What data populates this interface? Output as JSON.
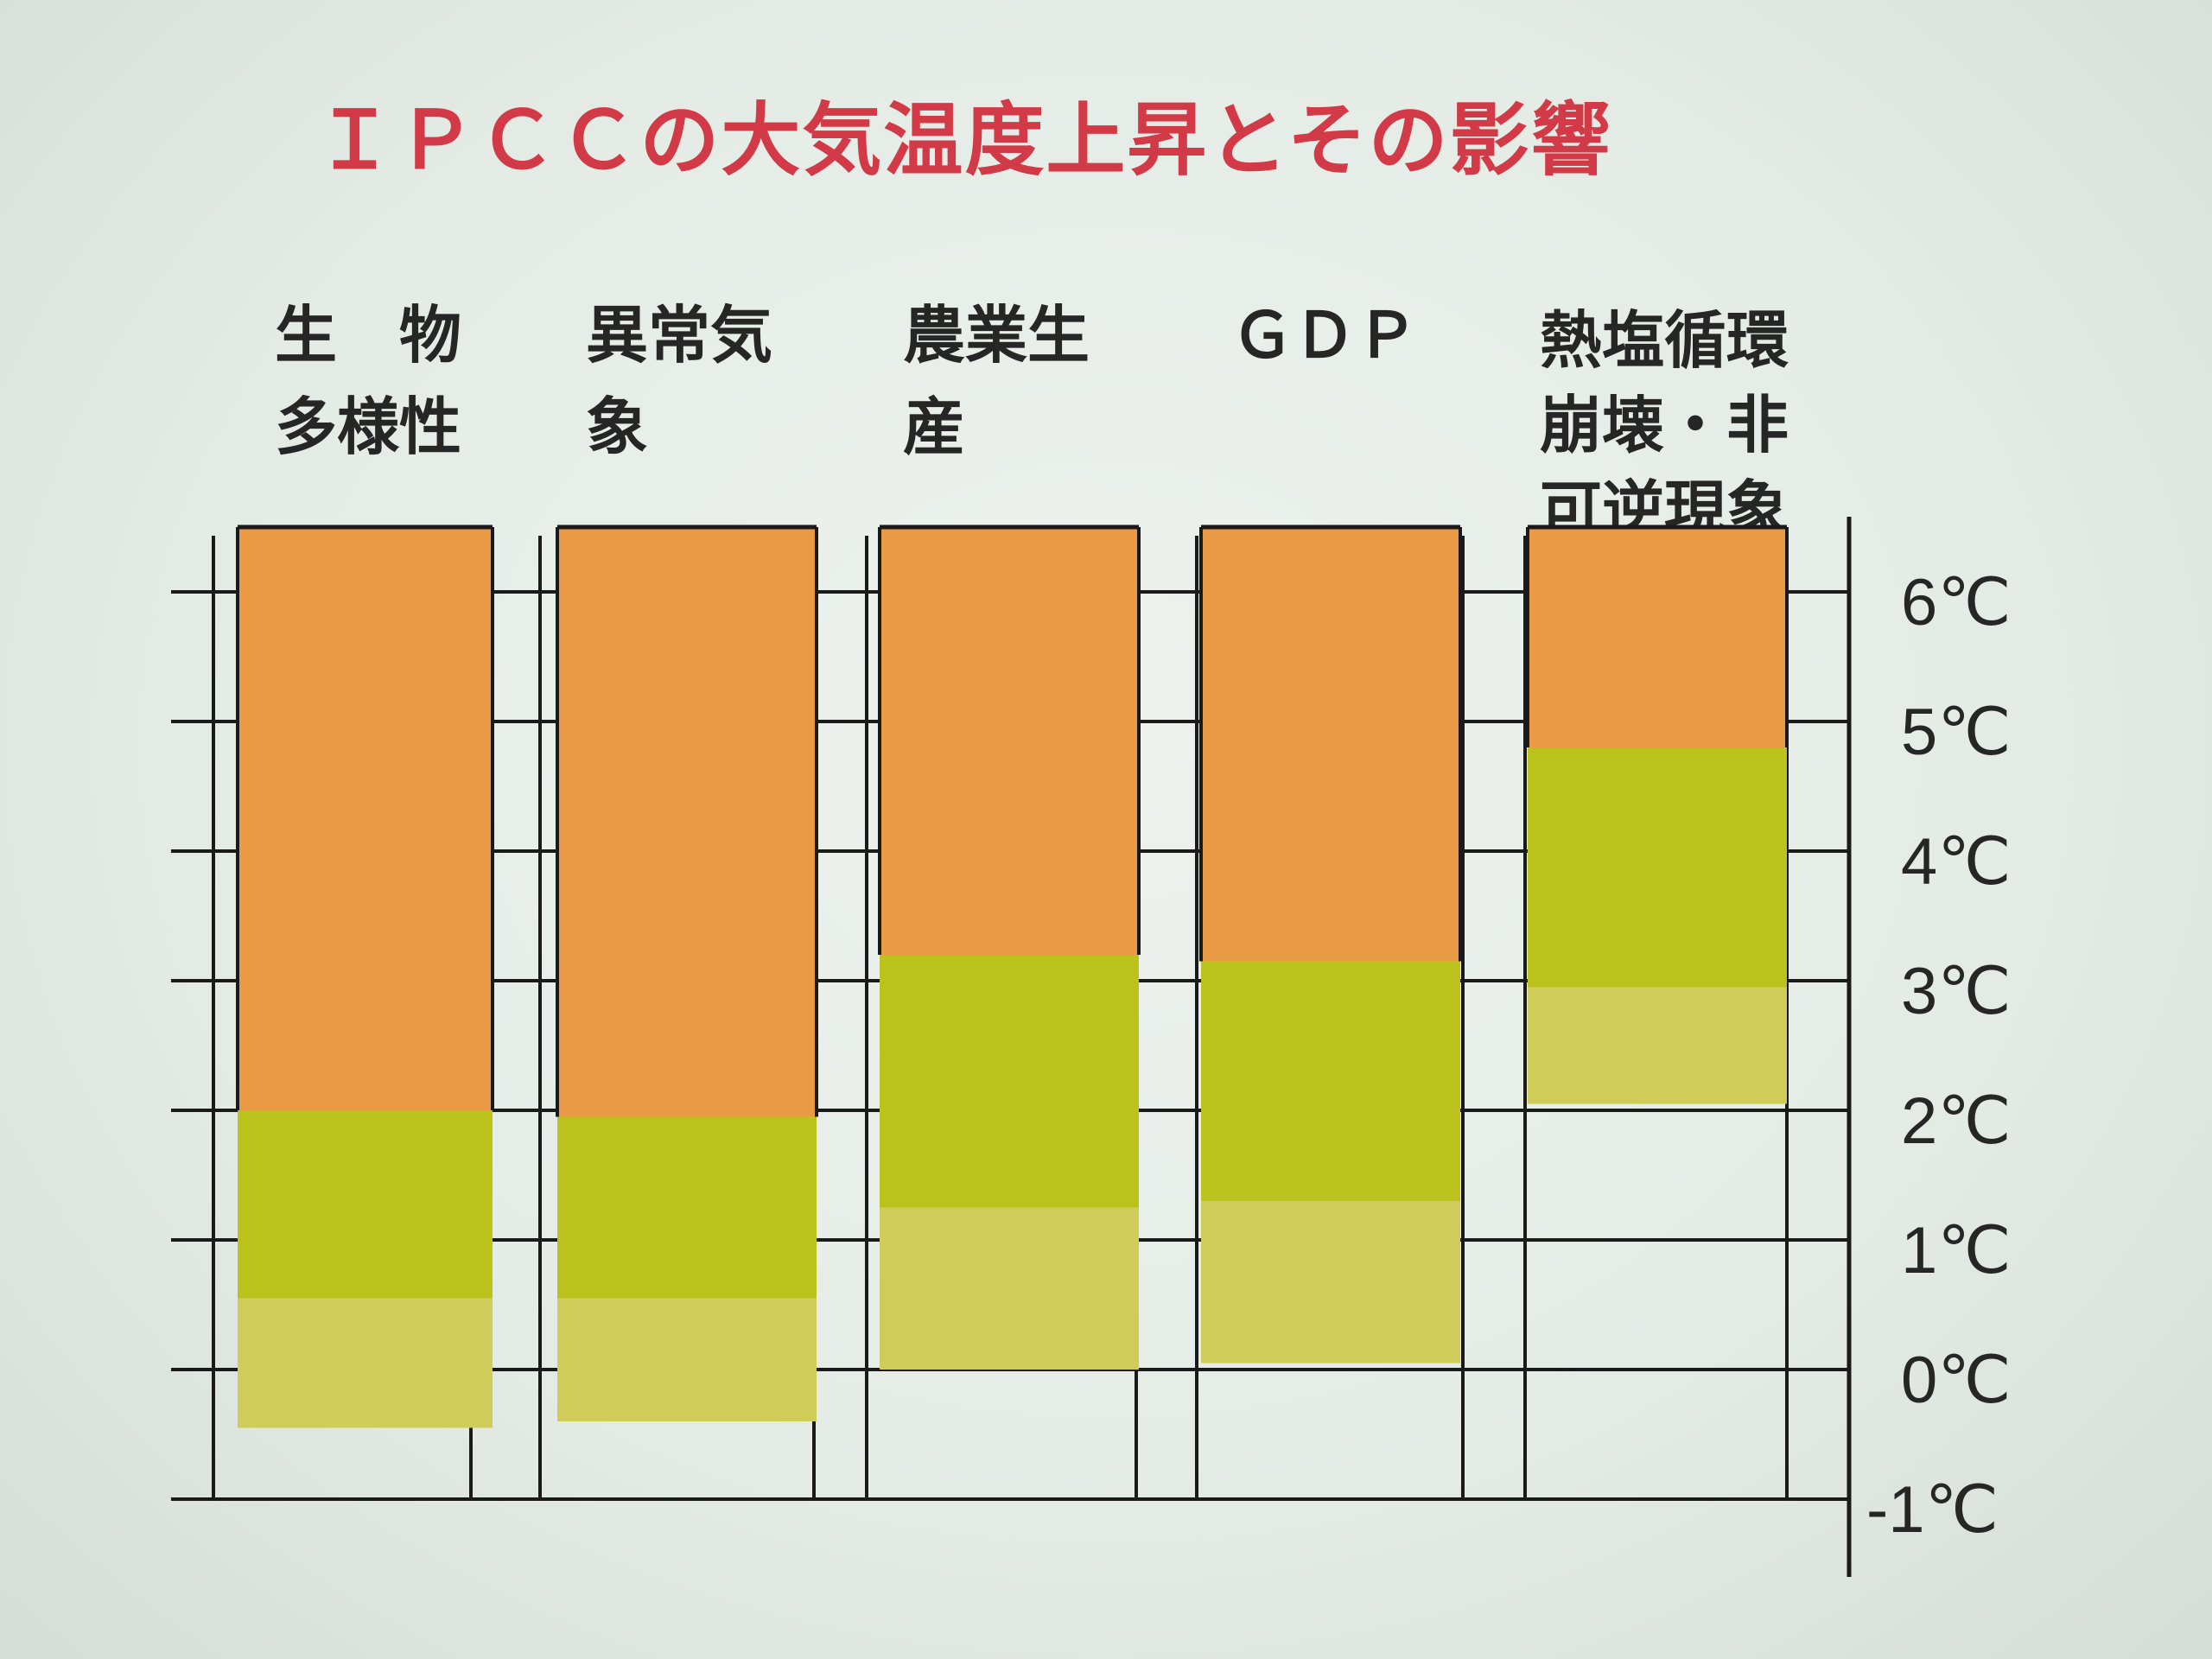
{
  "chart_data": {
    "type": "bar",
    "title": "ＩＰＣＣの大気温度上昇とその影響",
    "categories": [
      "生　物\n多様性",
      "異常気\n象",
      "農業生\n産",
      "ＧＤＰ",
      "熱塩循環\n崩壊・非\n可逆現象"
    ],
    "series": [
      {
        "color": "#cfcc5a",
        "values": [
          [
            -0.45,
            0.55
          ],
          [
            -0.4,
            0.55
          ],
          [
            0.0,
            1.25
          ],
          [
            0.05,
            1.3
          ],
          [
            2.05,
            2.95
          ]
        ]
      },
      {
        "color": "#bcc21c",
        "values": [
          [
            0.55,
            2.0
          ],
          [
            0.55,
            1.95
          ],
          [
            1.25,
            3.2
          ],
          [
            1.3,
            3.15
          ],
          [
            2.95,
            4.8
          ]
        ]
      },
      {
        "color": "#ea9a45",
        "values": [
          [
            2.0,
            6.5
          ],
          [
            1.95,
            6.5
          ],
          [
            3.2,
            6.5
          ],
          [
            3.15,
            6.5
          ],
          [
            4.8,
            6.5
          ]
        ]
      }
    ],
    "yticks": [
      "6℃",
      "5℃",
      "4℃",
      "3℃",
      "2℃",
      "1℃",
      "0℃",
      "-1℃"
    ],
    "ylim": [
      -1,
      6.5
    ],
    "grid": true,
    "axis_position": "right"
  }
}
